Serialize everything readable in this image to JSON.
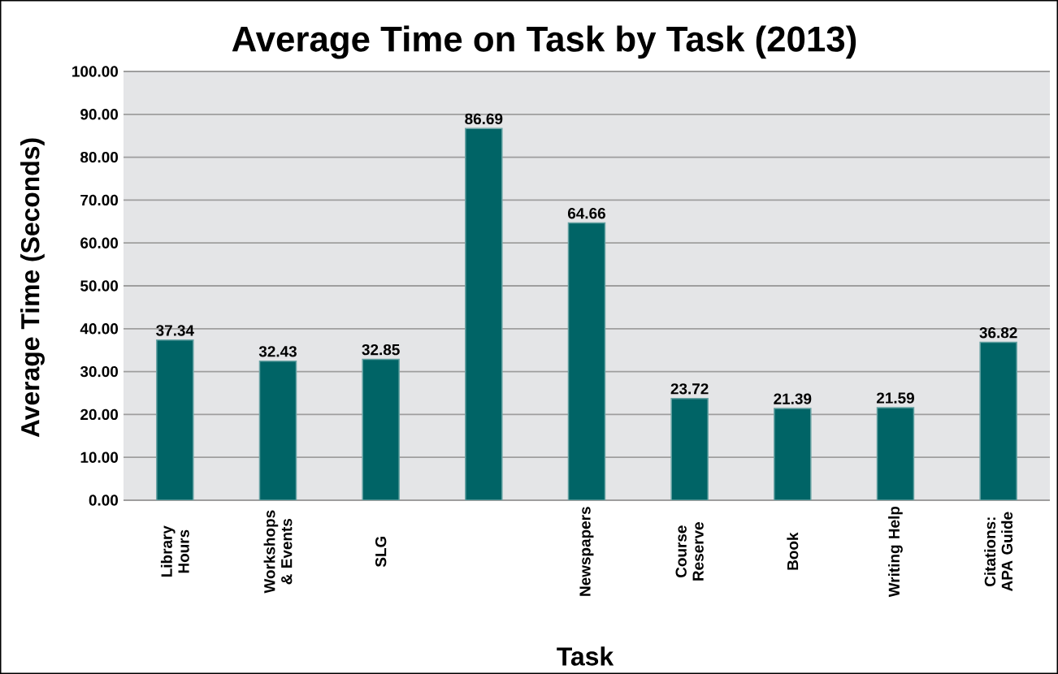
{
  "chart_data": {
    "type": "bar",
    "title": "Average Time on Task by Task (2013)",
    "xlabel": "Task",
    "ylabel": "Average Time (Seconds)",
    "categories": [
      "Library Hours",
      "Workshops & Events",
      "SLG",
      null,
      "Newspapers",
      "Course Reserve",
      "Book",
      "Writing Help",
      "Citations: APA Guide"
    ],
    "values": [
      37.34,
      32.43,
      32.85,
      86.69,
      64.66,
      23.72,
      21.39,
      21.59,
      36.82
    ],
    "value_labels": [
      "37.34",
      "32.43",
      "32.85",
      "86.69",
      "64.66",
      "23.72",
      "21.39",
      "21.59",
      "36.82"
    ],
    "color": "#006466",
    "ylim": [
      0,
      100
    ],
    "yticks": [
      {
        "value": 0,
        "label": "0.00"
      },
      {
        "value": 10,
        "label": "10.00"
      },
      {
        "value": 20,
        "label": "20.00"
      },
      {
        "value": 30,
        "label": "30.00"
      },
      {
        "value": 40,
        "label": "40.00"
      },
      {
        "value": 50,
        "label": "50.00"
      },
      {
        "value": 60,
        "label": "60.00"
      },
      {
        "value": 70,
        "label": "70.00"
      },
      {
        "value": 80,
        "label": "80.00"
      },
      {
        "value": 90,
        "label": "90.00"
      },
      {
        "value": 100,
        "label": "100.00"
      }
    ],
    "grid": "y"
  }
}
